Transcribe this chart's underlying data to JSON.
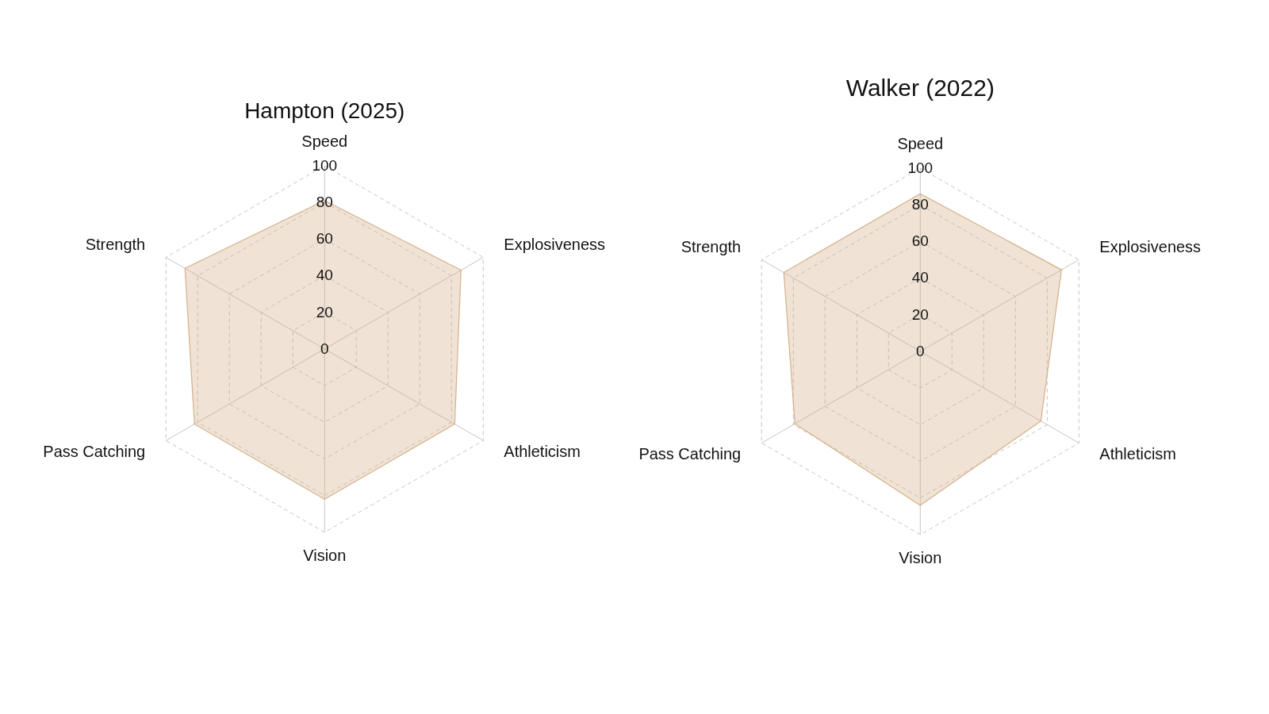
{
  "chart_data": [
    {
      "type": "radar",
      "title": "Hampton (2025)",
      "categories": [
        "Speed",
        "Explosiveness",
        "Athleticism",
        "Vision",
        "Pass Catching",
        "Strength"
      ],
      "series": [
        {
          "color": "#d4b088",
          "values": [
            81,
            86,
            82,
            82,
            82,
            88
          ]
        }
      ],
      "ylim": [
        0,
        100
      ],
      "yticks": [
        0,
        20,
        40,
        60,
        80,
        100
      ],
      "grid": true
    },
    {
      "type": "radar",
      "title": "Walker (2022)",
      "categories": [
        "Speed",
        "Explosiveness",
        "Athleticism",
        "Vision",
        "Pass Catching",
        "Strength"
      ],
      "series": [
        {
          "color": "#d4b088",
          "values": [
            86,
            89,
            76,
            84,
            79,
            86
          ]
        }
      ],
      "ylim": [
        0,
        100
      ],
      "yticks": [
        0,
        20,
        40,
        60,
        80,
        100
      ],
      "grid": true
    }
  ]
}
